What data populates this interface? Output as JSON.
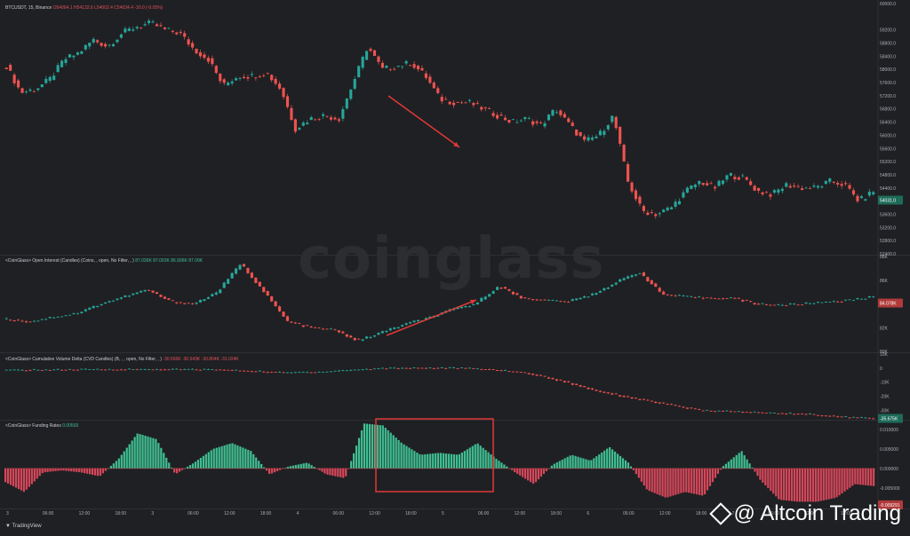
{
  "app": {
    "watermark": "coinglass",
    "tradingview_label": "TradingView",
    "credit_text": "@ Altcoin Trading"
  },
  "panels": {
    "price": {
      "label_symbol": "BTCUSDT, 15, Binance",
      "label_ohlc": "O54064.1  H54132.6  L54002.4  C54034.4  -30.0 (-0.05%)",
      "price_tag": "54031.0",
      "axis_ticks": [
        "60000.0",
        "59200.0",
        "58800.0",
        "58400.0",
        "58000.0",
        "57600.0",
        "57200.0",
        "56800.0",
        "56400.0",
        "56000.0",
        "55600.0",
        "55200.0",
        "54800.0",
        "54400.0",
        "54000.0",
        "53600.0",
        "53200.0",
        "52800.0",
        "52400.0"
      ]
    },
    "oi": {
      "label": "<CoinGlass> Open Interest (Candles) (Coins, , open, No Filter, , )",
      "values_text": "87.036K  87.093K  86.996K  87.09K",
      "price_tag": "84.078K",
      "axis_ticks": [
        "88K",
        "86K",
        "84K",
        "82K",
        "80K"
      ]
    },
    "cvd": {
      "label": "<CoinGlass> Cumulative Volume Delta (CVD Candles) (B, , , open, No Filter, , )",
      "values_text": "-30.566K  -30.643K  -30.804K  -31.024K",
      "price_tag": "-35.675K",
      "axis_ticks": [
        "10K",
        "0",
        "-10K",
        "-20K",
        "-30K"
      ]
    },
    "funding": {
      "label": "<CoinGlass> Funding Rates",
      "value_text": "0.00593",
      "axis_ticks": [
        "0.010000",
        "0.005000",
        "0.000000",
        "-0.005000"
      ],
      "price_tag": "-0.009291"
    }
  },
  "time_axis": [
    "3",
    "06:00",
    "12:00",
    "18:00",
    "3",
    "06:00",
    "12:00",
    "18:00",
    "4",
    "06:00",
    "12:00",
    "18:00",
    "5",
    "06:00",
    "12:00",
    "18:00",
    "6",
    "06:00",
    "12:00",
    "18:00",
    "7",
    "06:00",
    "12:00",
    "18:00"
  ],
  "colors": {
    "up": "#26a69a",
    "down": "#ef5350",
    "funding_pos": "#3fbf92",
    "funding_neg": "#d6475a",
    "annotation": "#e03838"
  },
  "chart_data": [
    {
      "type": "line",
      "title": "BTCUSDT, 15, Binance",
      "ylim": [
        52400,
        60000
      ],
      "series": [
        {
          "name": "BTCUSDT",
          "values": [
            58100,
            57300,
            57400,
            57700,
            58300,
            58500,
            58900,
            58700,
            59100,
            59300,
            59400,
            59200,
            59100,
            58600,
            58300,
            57500,
            57800,
            57800,
            57900,
            57400,
            56200,
            56500,
            56600,
            56500,
            57600,
            58700,
            58000,
            58100,
            58200,
            57800,
            57100,
            57000,
            57000,
            56800,
            56600,
            56400,
            56500,
            56300,
            56800,
            56300,
            55800,
            56000,
            56600,
            54600,
            53700,
            53600,
            53800,
            54300,
            54600,
            54400,
            54800,
            54700,
            54300,
            54200,
            54500,
            54400,
            54400,
            54600,
            54500,
            54000,
            54300
          ]
        }
      ]
    },
    {
      "type": "line",
      "title": "Open Interest",
      "ylim": [
        80000,
        88000
      ],
      "series": [
        {
          "name": "Open Interest",
          "values": [
            82700,
            82500,
            82900,
            83200,
            84000,
            84600,
            85200,
            84200,
            84000,
            85000,
            87400,
            85000,
            82500,
            82000,
            81800,
            80900,
            81600,
            82300,
            82800,
            83500,
            84000,
            85500,
            84500,
            84300,
            84200,
            84800,
            85800,
            86700,
            84800,
            84600,
            84500,
            84500,
            84000,
            83900,
            84000,
            84200,
            84300,
            84600
          ]
        }
      ]
    },
    {
      "type": "line",
      "title": "Cumulative Volume Delta",
      "ylim": [
        -36000,
        10000
      ],
      "series": [
        {
          "name": "CVD",
          "values": [
            -1500,
            -1200,
            -1000,
            -900,
            -800,
            -900,
            -1000,
            -2000,
            -3200,
            -2600,
            -1200,
            100,
            200,
            100,
            -1000,
            -3500,
            -9000,
            -16000,
            -21000,
            -25500,
            -30000,
            -30800,
            -31800,
            -32500,
            -34500,
            -35700
          ]
        }
      ]
    },
    {
      "type": "bar",
      "title": "Funding Rates",
      "ylim": [
        -0.01,
        0.012
      ],
      "series": [
        {
          "name": "Funding Rates",
          "values": [
            -0.0035,
            -0.006,
            -0.001,
            -0.0005,
            -0.001,
            -0.002,
            0.0025,
            0.009,
            0.0075,
            -0.0015,
            0.0015,
            0.005,
            0.0065,
            0.0045,
            -0.0015,
            0.0005,
            0.0015,
            -0.0015,
            -0.0025,
            0.0115,
            0.011,
            0.0065,
            0.0035,
            0.004,
            0.0035,
            0.0065,
            0.0025,
            -0.001,
            -0.004,
            0.001,
            0.0035,
            0.002,
            0.0055,
            0.0015,
            -0.0055,
            -0.0075,
            -0.006,
            -0.007,
            0.0005,
            0.0045,
            -0.003,
            -0.008,
            -0.0085,
            -0.0085,
            -0.0075,
            -0.004,
            -0.0045
          ]
        }
      ]
    }
  ]
}
